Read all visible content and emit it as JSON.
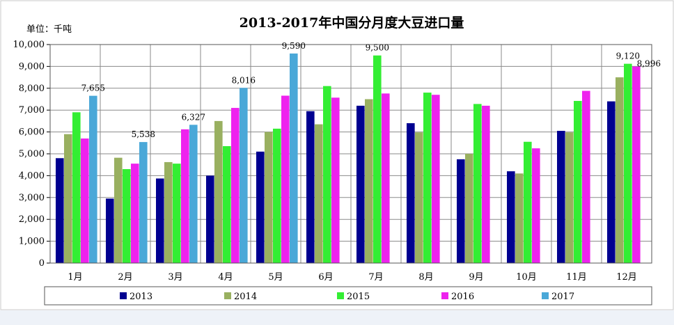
{
  "chart_data": {
    "type": "bar",
    "title": "2013-2017年中国分月度大豆进口量",
    "unit_label": "单位：千吨",
    "categories": [
      "1月",
      "2月",
      "3月",
      "4月",
      "5月",
      "6月",
      "7月",
      "8月",
      "9月",
      "10月",
      "11月",
      "12月"
    ],
    "ylim": [
      0,
      10000
    ],
    "yticks": [
      "0",
      "1,000",
      "2,000",
      "3,000",
      "4,000",
      "5,000",
      "6,000",
      "7,000",
      "8,000",
      "9,000",
      "10,000"
    ],
    "ytick_values": [
      0,
      1000,
      2000,
      3000,
      4000,
      5000,
      6000,
      7000,
      8000,
      9000,
      10000
    ],
    "grid": true,
    "legend_position": "bottom",
    "series": [
      {
        "name": "2013",
        "color": "#000090",
        "values": [
          4800,
          2950,
          3870,
          4000,
          5100,
          6950,
          7200,
          6400,
          4750,
          4200,
          6050,
          7400
        ]
      },
      {
        "name": "2014",
        "color": "#99b060",
        "values": [
          5900,
          4820,
          4620,
          6500,
          6000,
          6350,
          7500,
          5980,
          5000,
          4100,
          5980,
          8500
        ]
      },
      {
        "name": "2015",
        "color": "#33ee33",
        "values": [
          6900,
          4300,
          4550,
          5350,
          6150,
          8100,
          9500,
          7800,
          7280,
          5550,
          7420,
          9120
        ]
      },
      {
        "name": "2016",
        "color": "#ee22ee",
        "values": [
          5700,
          4550,
          6120,
          7100,
          7660,
          7570,
          7760,
          7700,
          7200,
          5250,
          7880,
          8996
        ]
      },
      {
        "name": "2017",
        "color": "#4aa8d8",
        "values": [
          7655,
          5538,
          6327,
          8016,
          9590,
          null,
          null,
          null,
          null,
          null,
          null,
          null
        ]
      }
    ],
    "data_labels": [
      {
        "category": "1月",
        "series": "2017",
        "text": "7,655"
      },
      {
        "category": "2月",
        "series": "2017",
        "text": "5,538"
      },
      {
        "category": "3月",
        "series": "2017",
        "text": "6,327"
      },
      {
        "category": "4月",
        "series": "2017",
        "text": "8,016"
      },
      {
        "category": "5月",
        "series": "2017",
        "text": "9,590"
      },
      {
        "category": "7月",
        "series": "2015",
        "text": "9,500"
      },
      {
        "category": "12月",
        "series": "2015",
        "text": "9,120"
      },
      {
        "category": "12月",
        "series": "2016",
        "text": "8,996"
      }
    ]
  }
}
